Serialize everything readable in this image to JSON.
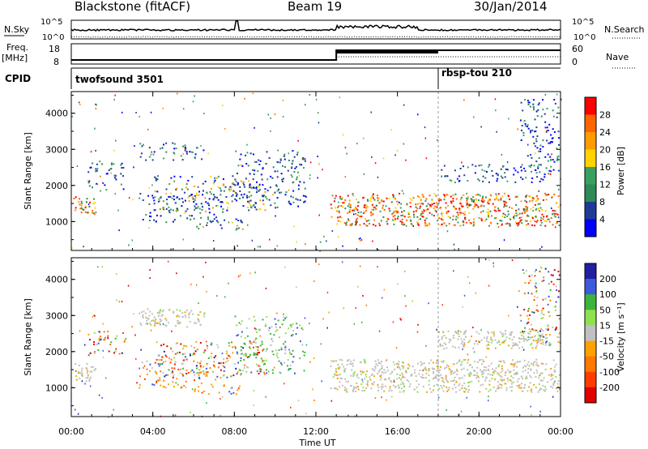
{
  "header": {
    "station": "Blackstone (fitACF)",
    "beam": "Beam 19",
    "date": "30/Jan/2014"
  },
  "strip_labels": {
    "nsky": "N.Sky",
    "nsearch": "N.Search",
    "freq": "Freq.",
    "freq_unit": "[MHz]",
    "nave": "Nave",
    "cpid": "CPID",
    "nsky_ticks": [
      "10^5",
      "10^0"
    ],
    "nsearch_ticks": [
      "10^5",
      "10^0"
    ],
    "freq_ticks": [
      "18",
      "8"
    ],
    "nave_ticks": [
      "60",
      "0"
    ]
  },
  "cpid_segments": [
    {
      "label": "twofsound 3501",
      "start_hour": 0
    },
    {
      "label": "rbsp-tou 210",
      "start_hour": 18
    }
  ],
  "chart_data": [
    {
      "type": "heatmap",
      "name": "power",
      "ylabel": "Slant Range [km]",
      "xlim": [
        0,
        24
      ],
      "ylim": [
        200,
        4600
      ],
      "yticks": [
        "1000",
        "2000",
        "3000",
        "4000"
      ],
      "colorbar": {
        "label": "Power [dB]",
        "ticks": [
          "28",
          "24",
          "20",
          "16",
          "12",
          "8",
          "4"
        ],
        "colors": [
          "#ff0000",
          "#ff6400",
          "#ff9a00",
          "#ffd200",
          "#3aa060",
          "#2e8b57",
          "#1e3c96",
          "#0000ff"
        ]
      },
      "bands": [
        {
          "t": [
            0.1,
            1.2
          ],
          "r": [
            1200,
            1700
          ],
          "kind": "strong"
        },
        {
          "t": [
            0.8,
            2.6
          ],
          "r": [
            1900,
            2700
          ],
          "kind": "weak"
        },
        {
          "t": [
            3.3,
            7.5
          ],
          "r": [
            1000,
            1800
          ],
          "kind": "weak"
        },
        {
          "t": [
            4.0,
            9.5
          ],
          "r": [
            1300,
            2300
          ],
          "kind": "medium"
        },
        {
          "t": [
            6.0,
            8.5
          ],
          "r": [
            800,
            1100
          ],
          "kind": "medium"
        },
        {
          "t": [
            3.3,
            6.5
          ],
          "r": [
            2700,
            3200
          ],
          "kind": "weak"
        },
        {
          "t": [
            8.0,
            11.5
          ],
          "r": [
            1400,
            3000
          ],
          "kind": "weak"
        },
        {
          "t": [
            12.7,
            24.0
          ],
          "r": [
            900,
            1800
          ],
          "kind": "strong"
        },
        {
          "t": [
            18.0,
            23.5
          ],
          "r": [
            2100,
            2600
          ],
          "kind": "weak"
        },
        {
          "t": [
            22.0,
            24.0
          ],
          "r": [
            2200,
            4400
          ],
          "kind": "weak"
        }
      ]
    },
    {
      "type": "heatmap",
      "name": "velocity",
      "ylabel": "Slant Range [km]",
      "xlim": [
        0,
        24
      ],
      "ylim": [
        200,
        4600
      ],
      "yticks": [
        "1000",
        "2000",
        "3000",
        "4000"
      ],
      "colorbar": {
        "label": "Velocity [m s⁻¹]",
        "ticks": [
          "200",
          "100",
          "50",
          "15",
          "-15",
          "-50",
          "-100",
          "-200"
        ],
        "colors": [
          "#2020a0",
          "#3c5adc",
          "#3cb43c",
          "#90e050",
          "#c0c0c0",
          "#ffa000",
          "#ff7800",
          "#ff3c00",
          "#e00000"
        ]
      },
      "bands": [
        {
          "t": [
            0.1,
            1.2
          ],
          "r": [
            1200,
            1700
          ],
          "kind": "gray"
        },
        {
          "t": [
            0.8,
            2.6
          ],
          "r": [
            1900,
            2700
          ],
          "kind": "mixed"
        },
        {
          "t": [
            3.3,
            7.5
          ],
          "r": [
            1000,
            1800
          ],
          "kind": "orange"
        },
        {
          "t": [
            4.0,
            9.5
          ],
          "r": [
            1300,
            2300
          ],
          "kind": "mixed"
        },
        {
          "t": [
            6.0,
            8.5
          ],
          "r": [
            800,
            1100
          ],
          "kind": "orange"
        },
        {
          "t": [
            3.3,
            6.5
          ],
          "r": [
            2700,
            3200
          ],
          "kind": "gray"
        },
        {
          "t": [
            8.0,
            11.5
          ],
          "r": [
            1400,
            3000
          ],
          "kind": "green"
        },
        {
          "t": [
            12.7,
            24.0
          ],
          "r": [
            900,
            1800
          ],
          "kind": "gray"
        },
        {
          "t": [
            18.0,
            23.5
          ],
          "r": [
            2100,
            2600
          ],
          "kind": "gray"
        },
        {
          "t": [
            22.0,
            24.0
          ],
          "r": [
            2200,
            4400
          ],
          "kind": "mixed"
        }
      ]
    }
  ],
  "xaxis": {
    "label": "Time UT",
    "ticks": [
      "00:00",
      "04:00",
      "08:00",
      "12:00",
      "16:00",
      "20:00",
      "00:00"
    ]
  }
}
